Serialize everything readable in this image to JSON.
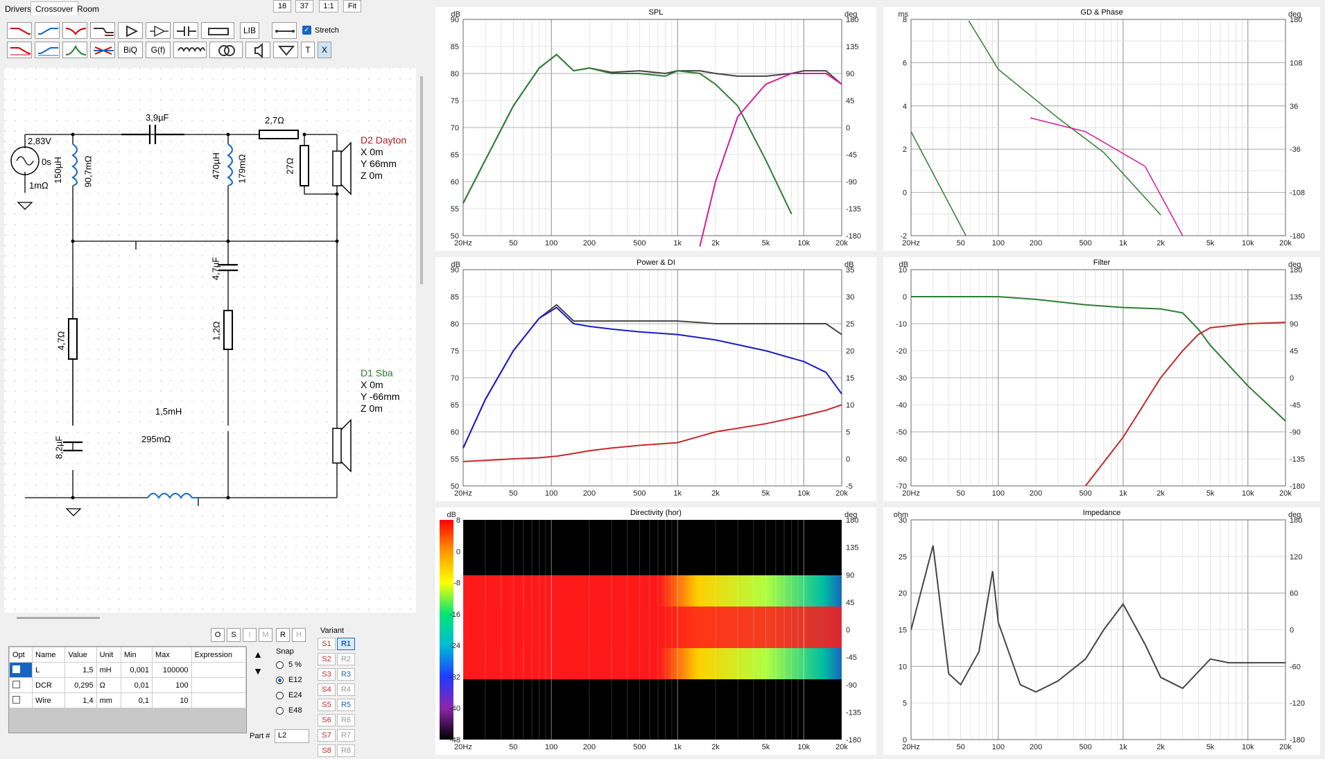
{
  "tabs": [
    "Drivers",
    "Crossover",
    "Room"
  ],
  "zoom": {
    "a": "18",
    "b": "37",
    "c": "1:1",
    "d": "Fit"
  },
  "toolbar": {
    "lib": "LIB",
    "stretch": "Stretch",
    "biq": "BiQ",
    "gf": "G(f)",
    "t": "T",
    "x": "X"
  },
  "schematic": {
    "source": {
      "voltage": "2,83V",
      "delay": "0s",
      "resistance": "1mΩ"
    },
    "L1": {
      "value": "150µH",
      "dcr": "90,7mΩ"
    },
    "C1": {
      "value": "3,9µF"
    },
    "R1": {
      "value": "2,7Ω"
    },
    "L3": {
      "value": "470µH",
      "dcr": "179mΩ"
    },
    "R2": {
      "value": "27Ω"
    },
    "C2": {
      "value": "4,7µF"
    },
    "R3": {
      "value": "1,2Ω"
    },
    "R4": {
      "value": "4,7Ω"
    },
    "C3": {
      "value": "8,2µF"
    },
    "L2": {
      "value": "1,5mH",
      "dcr": "295mΩ"
    },
    "D2": {
      "name": "D2 Dayton",
      "x": "X 0m",
      "y": "Y 66mm",
      "z": "Z 0m"
    },
    "D1": {
      "name": "D1 Sba",
      "x": "X 0m",
      "y": "Y -66mm",
      "z": "Z 0m"
    }
  },
  "mode_buttons": [
    "O",
    "S",
    "I",
    "M",
    "R",
    "H"
  ],
  "params": {
    "headers": [
      "Opt",
      "Name",
      "Value",
      "Unit",
      "Min",
      "Max",
      "Expression"
    ],
    "rows": [
      [
        "",
        "L",
        "1,5",
        "mH",
        "0,001",
        "100000",
        ""
      ],
      [
        "",
        "DCR",
        "0,295",
        "Ω",
        "0,01",
        "100",
        ""
      ],
      [
        "",
        "Wire",
        "1,4",
        "mm",
        "0,1",
        "10",
        ""
      ]
    ]
  },
  "snap": {
    "title": "Snap",
    "options": [
      "5 %",
      "E12",
      "E24",
      "E48"
    ],
    "selected": "E12"
  },
  "variant": {
    "title": "Variant",
    "s": [
      "S1",
      "S2",
      "S3",
      "S4",
      "S5",
      "S6",
      "S7",
      "S8"
    ],
    "r": [
      "R1",
      "R2",
      "R3",
      "R4",
      "R5",
      "R6",
      "R7",
      "R8"
    ],
    "selected": "R1"
  },
  "part": {
    "label": "Part #",
    "value": "L2"
  },
  "freq_ticks": [
    "20Hz",
    "50",
    "100",
    "200",
    "500",
    "1k",
    "2k",
    "5k",
    "10k",
    "20k"
  ],
  "charts": {
    "spl": {
      "title": "SPL",
      "yunit": "dB",
      "y2unit": "deg",
      "yticks": [
        "90",
        "85",
        "80",
        "75",
        "70",
        "65",
        "60",
        "55",
        "50"
      ],
      "y2ticks": [
        "180",
        "135",
        "90",
        "45",
        "0",
        "-45",
        "-90",
        "-135",
        "-180"
      ]
    },
    "gd": {
      "title": "GD & Phase",
      "yunit": "ms",
      "y2unit": "deg",
      "yticks": [
        "8",
        "6",
        "4",
        "2",
        "0",
        "-2"
      ],
      "y2ticks": [
        "180",
        "108",
        "36",
        "-36",
        "-108",
        "-180"
      ]
    },
    "power": {
      "title": "Power & DI",
      "yunit": "dB",
      "y2unit": "dB",
      "yticks": [
        "90",
        "85",
        "80",
        "75",
        "70",
        "65",
        "60",
        "55",
        "50"
      ],
      "y2ticks": [
        "35",
        "30",
        "25",
        "20",
        "15",
        "10",
        "5",
        "0",
        "-5"
      ]
    },
    "filter": {
      "title": "Filter",
      "yunit": "dB",
      "y2unit": "deg",
      "yticks": [
        "10",
        "0",
        "-10",
        "-20",
        "-30",
        "-40",
        "-50",
        "-60",
        "-70"
      ],
      "y2ticks": [
        "180",
        "135",
        "90",
        "45",
        "0",
        "-45",
        "-90",
        "-135",
        "-180"
      ]
    },
    "directivity": {
      "title": "Directivity (hor)",
      "yunit": "dB",
      "y2unit": "deg",
      "scale": [
        "8",
        "0",
        "-8",
        "-16",
        "-24",
        "-32",
        "-40",
        "-48"
      ],
      "y2ticks": [
        "180",
        "135",
        "90",
        "45",
        "0",
        "-45",
        "-90",
        "-135",
        "-180"
      ]
    },
    "impedance": {
      "title": "Impedance",
      "yunit": "ohm",
      "y2unit": "deg",
      "yticks": [
        "30",
        "25",
        "20",
        "15",
        "10",
        "5",
        "0"
      ],
      "y2ticks": [
        "180",
        "120",
        "60",
        "0",
        "-60",
        "-120",
        "-180"
      ]
    }
  },
  "chart_data": [
    {
      "type": "line",
      "title": "SPL",
      "ylabel": "dB",
      "ylim": [
        50,
        90
      ],
      "xlim": [
        20,
        20000
      ],
      "x": [
        20,
        30,
        50,
        80,
        110,
        150,
        200,
        300,
        500,
        800,
        1000,
        1500,
        2000,
        3000,
        5000,
        8000,
        10000,
        15000,
        20000
      ],
      "series": [
        {
          "values": [
            56,
            64,
            74,
            81,
            83.5,
            80.5,
            81,
            80.2,
            80.5,
            80,
            80.5,
            80.5,
            80,
            79.5,
            79.5,
            80,
            80.5,
            80.5,
            78
          ]
        },
        {
          "values": [
            56,
            64,
            74,
            81,
            83.5,
            80.5,
            81,
            80,
            80,
            79.5,
            80.5,
            80,
            78,
            74,
            64,
            54,
            null,
            null,
            null
          ]
        },
        {
          "values": [
            null,
            null,
            null,
            null,
            null,
            null,
            null,
            null,
            null,
            null,
            null,
            48,
            60,
            72,
            78,
            80,
            80,
            80,
            78
          ]
        }
      ]
    },
    {
      "type": "line",
      "title": "Power & DI",
      "ylabel": "dB",
      "ylim": [
        50,
        90
      ],
      "xlim": [
        20,
        20000
      ],
      "x": [
        20,
        30,
        50,
        80,
        110,
        150,
        200,
        300,
        500,
        1000,
        2000,
        5000,
        10000,
        15000,
        20000
      ],
      "series": [
        {
          "values": [
            57,
            66,
            75,
            81,
            83.5,
            80.5,
            80.5,
            80.5,
            80.5,
            80.5,
            80,
            80,
            80,
            80,
            78
          ]
        },
        {
          "values": [
            57,
            66,
            75,
            81,
            83,
            80,
            79.5,
            79,
            78.5,
            78,
            77,
            75,
            73,
            71,
            67
          ]
        },
        {
          "values": [
            54.5,
            54.7,
            55,
            55.2,
            55.5,
            56,
            56.5,
            57,
            57.5,
            58,
            60,
            61.5,
            63,
            64,
            65
          ]
        }
      ]
    },
    {
      "type": "line",
      "title": "Filter",
      "ylabel": "dB",
      "ylim": [
        -70,
        10
      ],
      "xlim": [
        20,
        20000
      ],
      "x": [
        20,
        50,
        100,
        200,
        500,
        1000,
        2000,
        3000,
        4000,
        5000,
        10000,
        20000
      ],
      "series": [
        {
          "values": [
            0,
            0,
            0,
            -1,
            -3,
            -4,
            -4.5,
            -6,
            -12,
            -18,
            -33,
            -46
          ]
        },
        {
          "values": [
            null,
            null,
            null,
            null,
            -70,
            -52,
            -30,
            -20,
            -14,
            -11.5,
            -10,
            -9.5
          ]
        }
      ]
    },
    {
      "type": "line",
      "title": "Impedance",
      "ylabel": "ohm",
      "ylim": [
        0,
        30
      ],
      "xlim": [
        20,
        20000
      ],
      "x": [
        20,
        30,
        40,
        50,
        70,
        90,
        100,
        150,
        200,
        300,
        500,
        700,
        1000,
        1500,
        2000,
        3000,
        5000,
        7000,
        10000,
        20000
      ],
      "series": [
        {
          "values": [
            15,
            26.5,
            9,
            7.5,
            12,
            23,
            16,
            7.5,
            6.5,
            8,
            11,
            15,
            18.5,
            13,
            8.5,
            7,
            11,
            10.5,
            10.5,
            10.5
          ]
        }
      ]
    }
  ]
}
